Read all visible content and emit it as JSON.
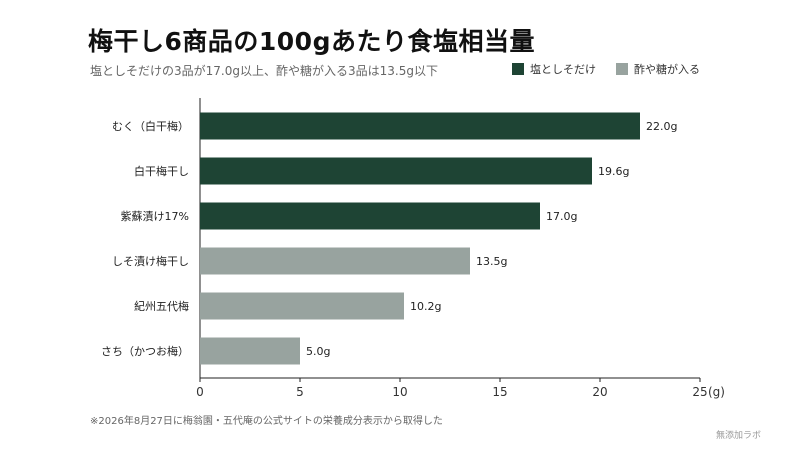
{
  "title": "梅干し6商品の100gあたり食塩相当量",
  "subtitle": "塩としそだけの3品が17.0g以上、酢や糖が入る3品は13.5g以下",
  "legend": [
    {
      "label": "塩としそだけ",
      "color": "#1e4434"
    },
    {
      "label": "酢や糖が入る",
      "color": "#98a39f"
    }
  ],
  "note": "※2026年8月27日に梅翁園・五代庵の公式サイトの栄養成分表示から取得した",
  "credit": "無添加ラボ",
  "chart_data": {
    "type": "bar",
    "orientation": "horizontal",
    "title": "梅干し6商品の100gあたり食塩相当量",
    "subtitle": "塩としそだけの3品が17.0g以上、酢や糖が入る3品は13.5g以下",
    "categories": [
      "むく（白干梅）",
      "白干梅干し",
      "紫蘇漬け17%",
      "しそ漬け梅干し",
      "紀州五代梅",
      "さち（かつお梅）"
    ],
    "values": [
      22.0,
      19.6,
      17.0,
      13.5,
      10.2,
      5.0
    ],
    "value_labels": [
      "22.0g",
      "19.6g",
      "17.0g",
      "13.5g",
      "10.2g",
      "5.0g"
    ],
    "groups": [
      "塩としそだけ",
      "塩としそだけ",
      "塩としそだけ",
      "酢や糖が入る",
      "酢や糖が入る",
      "酢や糖が入る"
    ],
    "colors": {
      "塩としそだけ": "#1e4434",
      "酢や糖が入る": "#98a39f"
    },
    "xlim": [
      0,
      25
    ],
    "xticks": [
      0,
      5,
      10,
      15,
      20,
      25
    ],
    "xunit": "(g)",
    "grid": false,
    "legend_position": "top-right"
  }
}
